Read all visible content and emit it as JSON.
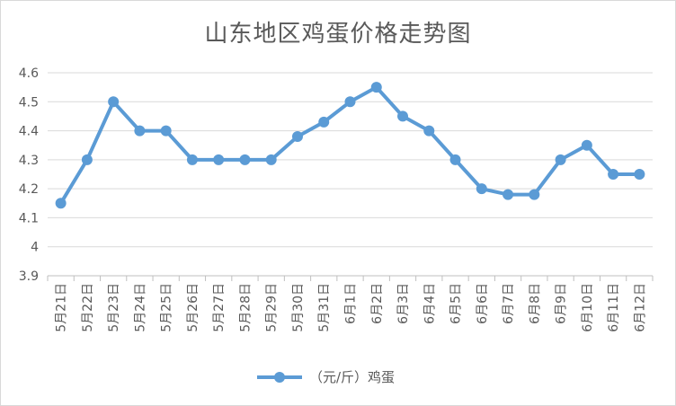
{
  "chart_data": {
    "type": "line",
    "title": "山东地区鸡蛋价格走势图",
    "categories": [
      "5月21日",
      "5月22日",
      "5月23日",
      "5月24日",
      "5月25日",
      "5月26日",
      "5月27日",
      "5月28日",
      "5月29日",
      "5月30日",
      "5月31日",
      "6月1日",
      "6月2日",
      "6月3日",
      "6月4日",
      "6月5日",
      "6月6日",
      "6月7日",
      "6月8日",
      "6月9日",
      "6月10日",
      "6月11日",
      "6月12日"
    ],
    "series": [
      {
        "name": "（元/斤）鸡蛋",
        "values": [
          4.15,
          4.3,
          4.5,
          4.4,
          4.4,
          4.3,
          4.3,
          4.3,
          4.3,
          4.38,
          4.43,
          4.5,
          4.55,
          4.45,
          4.4,
          4.3,
          4.2,
          4.18,
          4.18,
          4.3,
          4.35,
          4.25,
          4.25
        ]
      }
    ],
    "ylim": [
      3.9,
      4.6
    ],
    "yticks": [
      "3.9",
      "4",
      "4.1",
      "4.2",
      "4.3",
      "4.4",
      "4.5",
      "4.6"
    ],
    "grid": true,
    "legend_position": "bottom",
    "color": "#5b9bd5"
  }
}
